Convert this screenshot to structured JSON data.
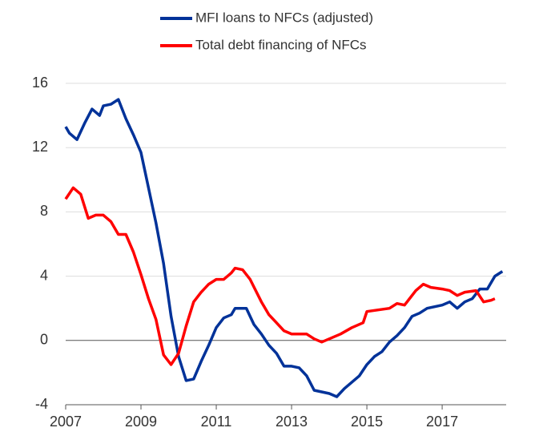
{
  "chart_data": {
    "type": "line",
    "xlim": [
      2007,
      2018.7
    ],
    "xticks": [
      2007,
      2009,
      2011,
      2013,
      2015,
      2017
    ],
    "ylim": [
      -4,
      16
    ],
    "yticks": [
      -4,
      0,
      4,
      8,
      12,
      16
    ],
    "grid": true,
    "series": [
      {
        "name": "MFI loans to NFCs (adjusted)",
        "color": "#003299",
        "x": [
          2007.0,
          2007.1,
          2007.3,
          2007.5,
          2007.7,
          2007.9,
          2008.0,
          2008.2,
          2008.4,
          2008.6,
          2008.8,
          2009.0,
          2009.2,
          2009.4,
          2009.6,
          2009.8,
          2010.0,
          2010.2,
          2010.4,
          2010.6,
          2010.8,
          2011.0,
          2011.2,
          2011.4,
          2011.5,
          2011.8,
          2012.0,
          2012.2,
          2012.4,
          2012.6,
          2012.8,
          2013.0,
          2013.2,
          2013.4,
          2013.6,
          2013.8,
          2014.0,
          2014.2,
          2014.4,
          2014.6,
          2014.8,
          2015.0,
          2015.2,
          2015.4,
          2015.6,
          2015.8,
          2016.0,
          2016.2,
          2016.4,
          2016.6,
          2016.8,
          2017.0,
          2017.2,
          2017.4,
          2017.6,
          2017.8,
          2018.0,
          2018.2,
          2018.4,
          2018.6
        ],
        "values": [
          13.3,
          12.9,
          12.5,
          13.5,
          14.4,
          14.0,
          14.6,
          14.7,
          15.0,
          13.8,
          12.8,
          11.7,
          9.5,
          7.3,
          4.8,
          1.5,
          -1.0,
          -2.5,
          -2.4,
          -1.3,
          -0.3,
          0.8,
          1.4,
          1.6,
          2.0,
          2.0,
          1.0,
          0.4,
          -0.3,
          -0.8,
          -1.6,
          -1.6,
          -1.7,
          -2.2,
          -3.1,
          -3.2,
          -3.3,
          -3.5,
          -3.0,
          -2.6,
          -2.2,
          -1.5,
          -1.0,
          -0.7,
          -0.1,
          0.3,
          0.8,
          1.5,
          1.7,
          2.0,
          2.1,
          2.2,
          2.4,
          2.0,
          2.4,
          2.6,
          3.2,
          3.2,
          4.0,
          4.3
        ]
      },
      {
        "name": "Total debt financing of NFCs",
        "color": "#ff0000",
        "x": [
          2007.0,
          2007.2,
          2007.4,
          2007.6,
          2007.8,
          2008.0,
          2008.2,
          2008.4,
          2008.6,
          2008.8,
          2009.0,
          2009.2,
          2009.4,
          2009.6,
          2009.8,
          2010.0,
          2010.2,
          2010.4,
          2010.6,
          2010.8,
          2011.0,
          2011.2,
          2011.4,
          2011.5,
          2011.7,
          2011.9,
          2012.2,
          2012.4,
          2012.6,
          2012.8,
          2013.0,
          2013.4,
          2013.6,
          2013.8,
          2014.0,
          2014.3,
          2014.6,
          2014.9,
          2015.0,
          2015.3,
          2015.6,
          2015.8,
          2016.0,
          2016.3,
          2016.5,
          2016.7,
          2017.0,
          2017.2,
          2017.4,
          2017.6,
          2017.9,
          2018.1,
          2018.3,
          2018.4
        ],
        "values": [
          8.8,
          9.5,
          9.1,
          7.6,
          7.8,
          7.8,
          7.4,
          6.6,
          6.6,
          5.5,
          4.1,
          2.6,
          1.3,
          -0.9,
          -1.5,
          -0.8,
          0.9,
          2.4,
          3.0,
          3.5,
          3.8,
          3.8,
          4.2,
          4.5,
          4.4,
          3.8,
          2.4,
          1.6,
          1.1,
          0.6,
          0.4,
          0.4,
          0.1,
          -0.1,
          0.1,
          0.4,
          0.8,
          1.1,
          1.8,
          1.9,
          2.0,
          2.3,
          2.2,
          3.1,
          3.5,
          3.3,
          3.2,
          3.1,
          2.8,
          3.0,
          3.1,
          2.4,
          2.5,
          2.6
        ]
      }
    ]
  }
}
